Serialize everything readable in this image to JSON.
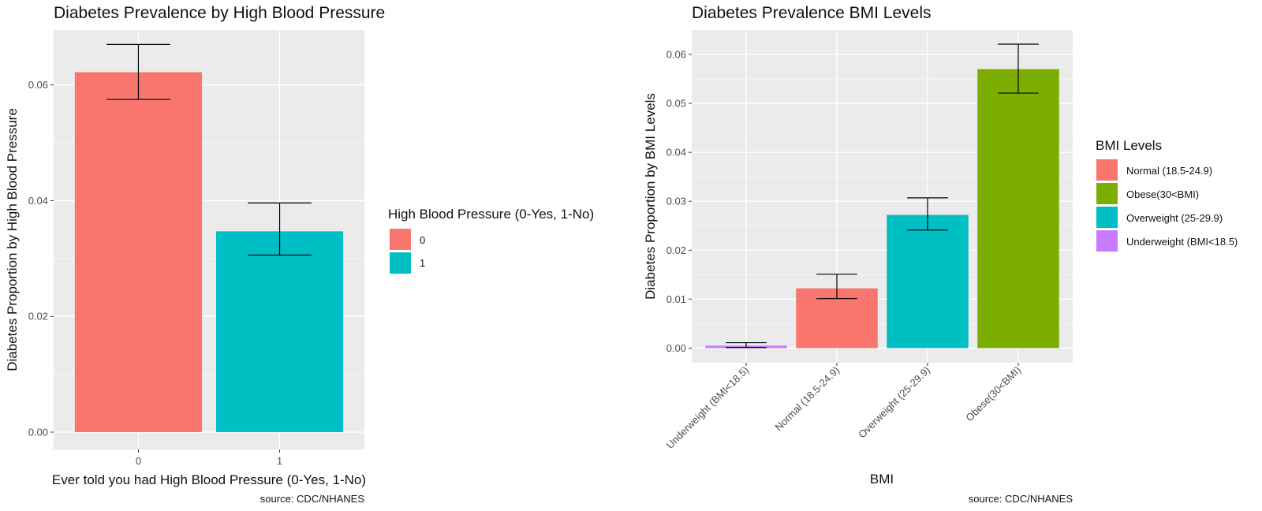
{
  "chart_data": [
    {
      "type": "bar",
      "title": "Diabetes Prevalence by High Blood Pressure",
      "xlabel": "Ever told you had High Blood Pressure (0-Yes, 1-No)",
      "ylabel": "Diabetes Proportion by High Blood Pressure",
      "categories": [
        "0",
        "1"
      ],
      "values": [
        0.0622,
        0.0347
      ],
      "error_low": [
        0.0575,
        0.0306
      ],
      "error_high": [
        0.067,
        0.0396
      ],
      "colors": [
        "#f8766d",
        "#00bfc4"
      ],
      "ylim": [
        -0.003,
        0.0695
      ],
      "yticks": [
        0,
        0.02,
        0.04,
        0.06
      ],
      "ytick_labels": [
        "0.00",
        "0.02",
        "0.04",
        "0.06"
      ],
      "legend": {
        "title": "High Blood Pressure (0-Yes, 1-No)",
        "position": "right",
        "entries": [
          {
            "label": "0",
            "color": "#f8766d"
          },
          {
            "label": "1",
            "color": "#00bfc4"
          }
        ]
      },
      "caption": "source: CDC/NHANES",
      "grid": true
    },
    {
      "type": "bar",
      "title": "Diabetes Prevalence BMI Levels",
      "xlabel": "BMI",
      "ylabel": "Diabetes Proportion by BMI Levels",
      "categories": [
        "Underweight (BMI<18.5)",
        "Normal (18.5-24.9)",
        "Overweight (25-29.9)",
        "Obese(30<BMI)"
      ],
      "values": [
        0.0005,
        0.0122,
        0.0272,
        0.057
      ],
      "error_low": [
        0.0001,
        0.0101,
        0.0241,
        0.0521
      ],
      "error_high": [
        0.0011,
        0.0151,
        0.0307,
        0.0621
      ],
      "colors": [
        "#c77cff",
        "#f8766d",
        "#00bfc4",
        "#7cae00"
      ],
      "ylim": [
        -0.003,
        0.065
      ],
      "yticks": [
        0,
        0.01,
        0.02,
        0.03,
        0.04,
        0.05,
        0.06
      ],
      "ytick_labels": [
        "0.00",
        "0.01",
        "0.02",
        "0.03",
        "0.04",
        "0.05",
        "0.06"
      ],
      "x_labels_rotated": true,
      "legend": {
        "title": "BMI Levels",
        "position": "right",
        "entries": [
          {
            "label": "Normal (18.5-24.9)",
            "color": "#f8766d"
          },
          {
            "label": "Obese(30<BMI)",
            "color": "#7cae00"
          },
          {
            "label": "Overweight (25-29.9)",
            "color": "#00bfc4"
          },
          {
            "label": "Underweight (BMI<18.5)",
            "color": "#c77cff"
          }
        ]
      },
      "caption": "source: CDC/NHANES",
      "grid": true
    }
  ]
}
